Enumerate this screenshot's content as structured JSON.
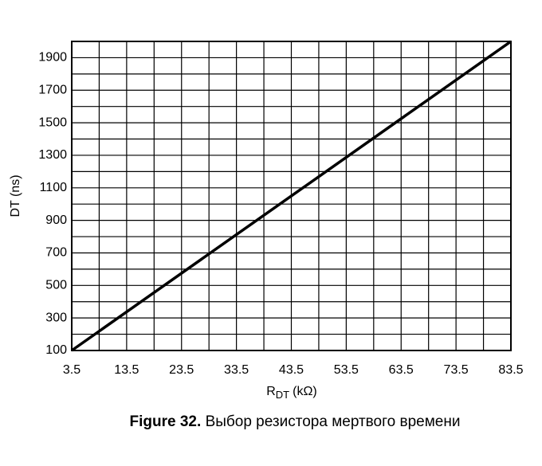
{
  "chart_data": {
    "type": "line",
    "caption_label": "Figure 32.",
    "caption": "Выбор резистора мертвого времени",
    "ylabel": "DT (ns)",
    "xlabel": {
      "main": "R",
      "sub": "DT",
      "unit": "(kΩ)"
    },
    "x": [
      3.5,
      83.5
    ],
    "series": [
      {
        "name": "DT",
        "color": "#000000",
        "values": [
          100,
          2000
        ]
      }
    ],
    "xlim": [
      3.5,
      83.5
    ],
    "ylim": [
      100,
      2000
    ],
    "xticks": [
      3.5,
      13.5,
      23.5,
      33.5,
      43.5,
      53.5,
      63.5,
      73.5,
      83.5
    ],
    "yticks": [
      100,
      300,
      500,
      700,
      900,
      1100,
      1300,
      1500,
      1700,
      1900
    ],
    "xgrid": [
      3.5,
      8.5,
      13.5,
      18.5,
      23.5,
      28.5,
      33.5,
      38.5,
      43.5,
      48.5,
      53.5,
      58.5,
      63.5,
      68.5,
      73.5,
      78.5,
      83.5
    ],
    "ygrid": [
      100,
      200,
      300,
      400,
      500,
      600,
      700,
      800,
      900,
      1000,
      1100,
      1200,
      1300,
      1400,
      1500,
      1600,
      1700,
      1800,
      1900,
      2000
    ],
    "grid": true
  }
}
